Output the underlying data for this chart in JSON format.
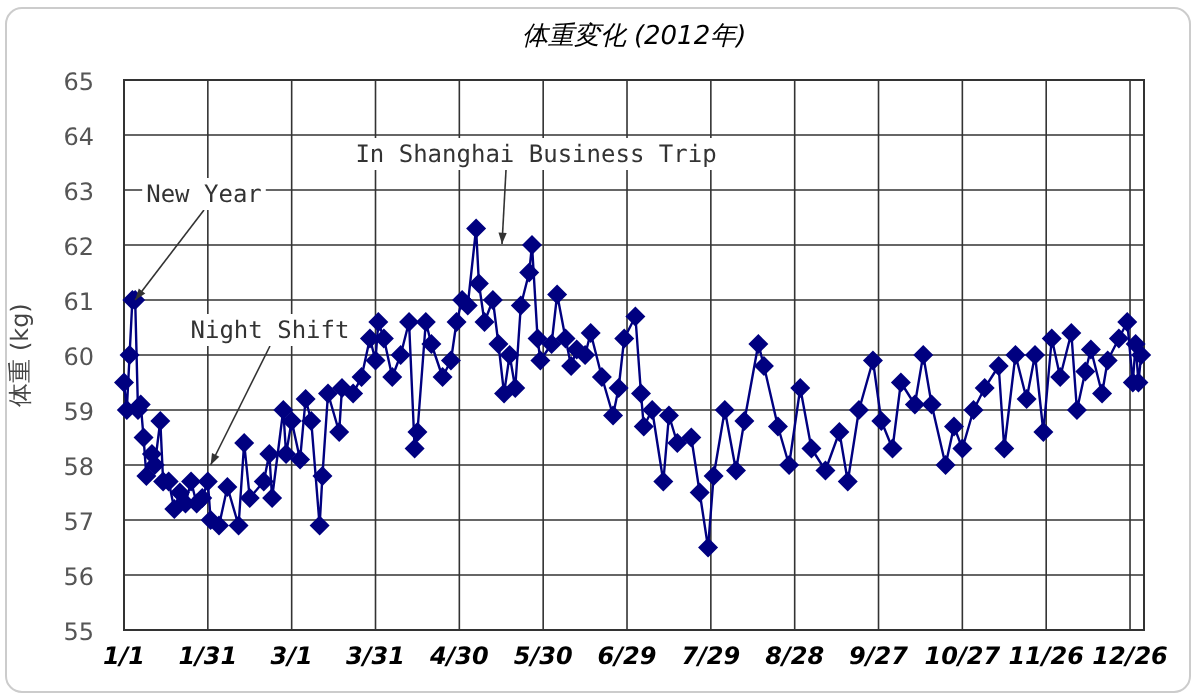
{
  "chart_data": {
    "type": "line",
    "title": "体重変化 (2012年)",
    "ylabel": "体重 (kg)",
    "marker": "diamond",
    "line_style": "solid",
    "grid": true,
    "xlim": [
      "2012-01-01",
      "2012-12-31"
    ],
    "ylim": [
      55,
      65
    ],
    "yticks": [
      55,
      56,
      57,
      58,
      59,
      60,
      61,
      62,
      63,
      64,
      65
    ],
    "xticks": [
      {
        "value": "2012-01-01",
        "label": "1/1"
      },
      {
        "value": "2012-01-31",
        "label": "1/31"
      },
      {
        "value": "2012-03-01",
        "label": "3/1"
      },
      {
        "value": "2012-03-31",
        "label": "3/31"
      },
      {
        "value": "2012-04-30",
        "label": "4/30"
      },
      {
        "value": "2012-05-30",
        "label": "5/30"
      },
      {
        "value": "2012-06-29",
        "label": "6/29"
      },
      {
        "value": "2012-07-29",
        "label": "7/29"
      },
      {
        "value": "2012-08-28",
        "label": "8/28"
      },
      {
        "value": "2012-09-27",
        "label": "9/27"
      },
      {
        "value": "2012-10-27",
        "label": "10/27"
      },
      {
        "value": "2012-11-26",
        "label": "11/26"
      },
      {
        "value": "2012-12-26",
        "label": "12/26"
      }
    ],
    "annotations": [
      {
        "text": "New Year",
        "x": "2012-01-05",
        "y": 61.0
      },
      {
        "text": "Night Shift",
        "x": "2012-02-01",
        "y": 58.0
      },
      "In Shanghai Business Trip"
    ],
    "x": [
      "2012-01-01",
      "2012-01-02",
      "2012-01-03",
      "2012-01-04",
      "2012-01-05",
      "2012-01-06",
      "2012-01-07",
      "2012-01-08",
      "2012-01-09",
      "2012-01-11",
      "2012-01-12",
      "2012-01-14",
      "2012-01-15",
      "2012-01-17",
      "2012-01-19",
      "2012-01-21",
      "2012-01-23",
      "2012-01-25",
      "2012-01-27",
      "2012-01-29",
      "2012-01-31",
      "2012-02-01",
      "2012-02-04",
      "2012-02-07",
      "2012-02-11",
      "2012-02-13",
      "2012-02-15",
      "2012-02-20",
      "2012-02-22",
      "2012-02-23",
      "2012-02-27",
      "2012-02-28",
      "2012-03-01",
      "2012-03-04",
      "2012-03-06",
      "2012-03-08",
      "2012-03-11",
      "2012-03-12",
      "2012-03-14",
      "2012-03-18",
      "2012-03-19",
      "2012-03-23",
      "2012-03-26",
      "2012-03-29",
      "2012-03-31",
      "2012-04-01",
      "2012-04-03",
      "2012-04-06",
      "2012-04-09",
      "2012-04-12",
      "2012-04-14",
      "2012-04-15",
      "2012-04-18",
      "2012-04-20",
      "2012-04-24",
      "2012-04-27",
      "2012-04-29",
      "2012-05-01",
      "2012-05-03",
      "2012-05-06",
      "2012-05-07",
      "2012-05-09",
      "2012-05-12",
      "2012-05-14",
      "2012-05-16",
      "2012-05-18",
      "2012-05-20",
      "2012-05-22",
      "2012-05-25",
      "2012-05-26",
      "2012-05-28",
      "2012-05-29",
      "2012-06-02",
      "2012-06-04",
      "2012-06-07",
      "2012-06-09",
      "2012-06-11",
      "2012-06-14",
      "2012-06-16",
      "2012-06-20",
      "2012-06-24",
      "2012-06-26",
      "2012-06-28",
      "2012-07-02",
      "2012-07-04",
      "2012-07-05",
      "2012-07-08",
      "2012-07-12",
      "2012-07-14",
      "2012-07-17",
      "2012-07-22",
      "2012-07-25",
      "2012-07-28",
      "2012-07-30",
      "2012-08-03",
      "2012-08-07",
      "2012-08-10",
      "2012-08-15",
      "2012-08-17",
      "2012-08-22",
      "2012-08-26",
      "2012-08-30",
      "2012-09-03",
      "2012-09-08",
      "2012-09-13",
      "2012-09-16",
      "2012-09-20",
      "2012-09-25",
      "2012-09-28",
      "2012-10-02",
      "2012-10-05",
      "2012-10-10",
      "2012-10-13",
      "2012-10-16",
      "2012-10-21",
      "2012-10-24",
      "2012-10-27",
      "2012-10-31",
      "2012-11-04",
      "2012-11-09",
      "2012-11-11",
      "2012-11-15",
      "2012-11-19",
      "2012-11-22",
      "2012-11-25",
      "2012-11-28",
      "2012-12-01",
      "2012-12-05",
      "2012-12-07",
      "2012-12-10",
      "2012-12-12",
      "2012-12-16",
      "2012-12-18",
      "2012-12-22",
      "2012-12-25",
      "2012-12-27",
      "2012-12-28",
      "2012-12-29",
      "2012-12-30"
    ],
    "series": [
      {
        "color": "#000080",
        "values": [
          59.5,
          59.0,
          60.0,
          61.0,
          61.0,
          59.0,
          59.1,
          58.5,
          57.8,
          58.2,
          58.0,
          58.8,
          57.7,
          57.7,
          57.2,
          57.5,
          57.3,
          57.7,
          57.3,
          57.4,
          57.7,
          57.0,
          56.9,
          57.6,
          56.9,
          58.4,
          57.4,
          57.7,
          58.2,
          57.4,
          59.0,
          58.2,
          58.8,
          58.1,
          59.2,
          58.8,
          56.9,
          57.8,
          59.3,
          58.6,
          59.4,
          59.3,
          59.6,
          60.3,
          59.9,
          60.6,
          60.3,
          59.6,
          60.0,
          60.6,
          58.3,
          58.6,
          60.6,
          60.2,
          59.6,
          59.9,
          60.6,
          61.0,
          60.9,
          62.3,
          61.3,
          60.6,
          61.0,
          60.2,
          59.3,
          60.0,
          59.4,
          60.9,
          61.5,
          62.0,
          60.3,
          59.9,
          60.2,
          61.1,
          60.3,
          59.8,
          60.1,
          60.0,
          60.4,
          59.6,
          58.9,
          59.4,
          60.3,
          60.7,
          59.3,
          58.7,
          59.0,
          57.7,
          58.9,
          58.4,
          58.5,
          57.5,
          56.5,
          57.8,
          59.0,
          57.9,
          58.8,
          60.2,
          59.8,
          58.7,
          58.0,
          59.4,
          58.3,
          57.9,
          58.6,
          57.7,
          59.0,
          59.9,
          58.8,
          58.3,
          59.5,
          59.1,
          60.0,
          59.1,
          58.0,
          58.7,
          58.3,
          59.0,
          59.4,
          59.8,
          58.3,
          60.0,
          59.2,
          60.0,
          58.6,
          60.3,
          59.6,
          60.4,
          59.0,
          59.7,
          60.1,
          59.3,
          59.9,
          60.3,
          60.6,
          59.5,
          60.2,
          59.5,
          60.0
        ]
      }
    ]
  }
}
